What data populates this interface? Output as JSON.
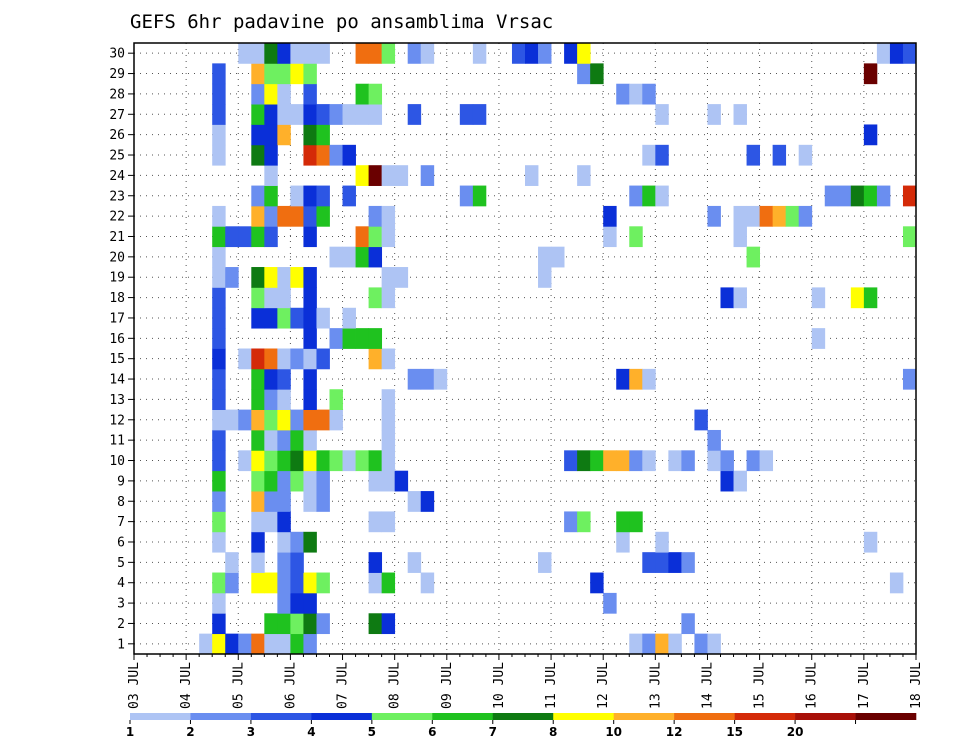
{
  "chart_data": {
    "type": "heatmap",
    "title": "GEFS 6hr padavine po ansamblima Vrsac",
    "xlabel": "",
    "ylabel": "",
    "x_categories": [
      "03 JUL",
      "04 JUL",
      "05 JUL",
      "06 JUL",
      "07 JUL",
      "08 JUL",
      "09 JUL",
      "10 JUL",
      "11 JUL",
      "12 JUL",
      "13 JUL",
      "14 JUL",
      "15 JUL",
      "16 JUL",
      "17 JUL",
      "18 JUL"
    ],
    "y_categories": [
      "1",
      "2",
      "3",
      "4",
      "5",
      "6",
      "7",
      "8",
      "9",
      "10",
      "11",
      "12",
      "13",
      "14",
      "15",
      "16",
      "17",
      "18",
      "19",
      "20",
      "21",
      "22",
      "23",
      "24",
      "25",
      "26",
      "27",
      "28",
      "29",
      "30"
    ],
    "steps_per_day": 4,
    "grid": true,
    "legend_placement": "bottom",
    "color_levels": [
      {
        "color": "#aec4f4",
        "label": "1"
      },
      {
        "color": "#6a8ef0",
        "label": "2"
      },
      {
        "color": "#2d56e4",
        "label": "3"
      },
      {
        "color": "#0a2fd8",
        "label": "4"
      },
      {
        "color": "#6ef060",
        "label": "5"
      },
      {
        "color": "#1fc21f",
        "label": "6"
      },
      {
        "color": "#0e7a12",
        "label": "7"
      },
      {
        "color": "#ffff00",
        "label": "8"
      },
      {
        "color": "#ffb02a",
        "label": "10"
      },
      {
        "color": "#f06e10",
        "label": "12"
      },
      {
        "color": "#d42a08",
        "label": "15"
      },
      {
        "color": "#a81008",
        "label": "20"
      },
      {
        "color": "#6a0000",
        "label": ""
      }
    ],
    "cells": [
      [
        1,
        5,
        0
      ],
      [
        1,
        6,
        7
      ],
      [
        1,
        7,
        3
      ],
      [
        1,
        8,
        1
      ],
      [
        1,
        9,
        9
      ],
      [
        1,
        10,
        0
      ],
      [
        1,
        11,
        0
      ],
      [
        1,
        12,
        5
      ],
      [
        1,
        13,
        1
      ],
      [
        1,
        38,
        0
      ],
      [
        1,
        39,
        1
      ],
      [
        1,
        40,
        8
      ],
      [
        1,
        41,
        0
      ],
      [
        1,
        43,
        1
      ],
      [
        1,
        44,
        0
      ],
      [
        2,
        6,
        3
      ],
      [
        2,
        10,
        5
      ],
      [
        2,
        11,
        5
      ],
      [
        2,
        12,
        4
      ],
      [
        2,
        13,
        6
      ],
      [
        2,
        14,
        1
      ],
      [
        2,
        18,
        6
      ],
      [
        2,
        19,
        3
      ],
      [
        2,
        42,
        1
      ],
      [
        3,
        6,
        0
      ],
      [
        3,
        11,
        1
      ],
      [
        3,
        12,
        3
      ],
      [
        3,
        13,
        3
      ],
      [
        3,
        36,
        1
      ],
      [
        4,
        6,
        4
      ],
      [
        4,
        7,
        1
      ],
      [
        4,
        9,
        7
      ],
      [
        4,
        10,
        7
      ],
      [
        4,
        11,
        1
      ],
      [
        4,
        12,
        2
      ],
      [
        4,
        13,
        7
      ],
      [
        4,
        14,
        4
      ],
      [
        4,
        18,
        0
      ],
      [
        4,
        19,
        5
      ],
      [
        4,
        22,
        0
      ],
      [
        4,
        35,
        3
      ],
      [
        4,
        58,
        0
      ],
      [
        5,
        7,
        0
      ],
      [
        5,
        9,
        0
      ],
      [
        5,
        11,
        1
      ],
      [
        5,
        12,
        2
      ],
      [
        5,
        18,
        3
      ],
      [
        5,
        21,
        0
      ],
      [
        5,
        31,
        0
      ],
      [
        5,
        39,
        2
      ],
      [
        5,
        40,
        2
      ],
      [
        5,
        41,
        3
      ],
      [
        5,
        42,
        1
      ],
      [
        6,
        6,
        0
      ],
      [
        6,
        9,
        3
      ],
      [
        6,
        11,
        0
      ],
      [
        6,
        12,
        1
      ],
      [
        6,
        13,
        6
      ],
      [
        6,
        37,
        0
      ],
      [
        6,
        40,
        0
      ],
      [
        6,
        56,
        0
      ],
      [
        7,
        6,
        4
      ],
      [
        7,
        9,
        0
      ],
      [
        7,
        10,
        0
      ],
      [
        7,
        11,
        3
      ],
      [
        7,
        18,
        0
      ],
      [
        7,
        19,
        0
      ],
      [
        7,
        33,
        1
      ],
      [
        7,
        34,
        4
      ],
      [
        7,
        37,
        5
      ],
      [
        7,
        38,
        5
      ],
      [
        8,
        6,
        1
      ],
      [
        8,
        9,
        8
      ],
      [
        8,
        10,
        1
      ],
      [
        8,
        11,
        1
      ],
      [
        8,
        13,
        0
      ],
      [
        8,
        14,
        1
      ],
      [
        8,
        21,
        0
      ],
      [
        8,
        22,
        3
      ],
      [
        9,
        6,
        5
      ],
      [
        9,
        9,
        4
      ],
      [
        9,
        10,
        5
      ],
      [
        9,
        11,
        1
      ],
      [
        9,
        12,
        4
      ],
      [
        9,
        13,
        0
      ],
      [
        9,
        14,
        1
      ],
      [
        9,
        18,
        0
      ],
      [
        9,
        19,
        0
      ],
      [
        9,
        20,
        3
      ],
      [
        9,
        45,
        3
      ],
      [
        9,
        46,
        0
      ],
      [
        10,
        6,
        2
      ],
      [
        10,
        8,
        0
      ],
      [
        10,
        9,
        7
      ],
      [
        10,
        10,
        4
      ],
      [
        10,
        11,
        5
      ],
      [
        10,
        12,
        6
      ],
      [
        10,
        13,
        7
      ],
      [
        10,
        14,
        5
      ],
      [
        10,
        15,
        4
      ],
      [
        10,
        16,
        0
      ],
      [
        10,
        17,
        4
      ],
      [
        10,
        18,
        5
      ],
      [
        10,
        19,
        0
      ],
      [
        10,
        33,
        2
      ],
      [
        10,
        34,
        6
      ],
      [
        10,
        35,
        5
      ],
      [
        10,
        36,
        8
      ],
      [
        10,
        37,
        8
      ],
      [
        10,
        38,
        1
      ],
      [
        10,
        39,
        0
      ],
      [
        10,
        41,
        0
      ],
      [
        10,
        42,
        1
      ],
      [
        10,
        44,
        0
      ],
      [
        10,
        45,
        1
      ],
      [
        10,
        47,
        1
      ],
      [
        10,
        48,
        0
      ],
      [
        11,
        6,
        2
      ],
      [
        11,
        9,
        5
      ],
      [
        11,
        10,
        0
      ],
      [
        11,
        11,
        1
      ],
      [
        11,
        12,
        5
      ],
      [
        11,
        13,
        0
      ],
      [
        11,
        19,
        0
      ],
      [
        11,
        44,
        1
      ],
      [
        12,
        6,
        0
      ],
      [
        12,
        7,
        0
      ],
      [
        12,
        8,
        1
      ],
      [
        12,
        9,
        8
      ],
      [
        12,
        10,
        4
      ],
      [
        12,
        11,
        7
      ],
      [
        12,
        12,
        1
      ],
      [
        12,
        13,
        9
      ],
      [
        12,
        14,
        9
      ],
      [
        12,
        15,
        0
      ],
      [
        12,
        19,
        0
      ],
      [
        12,
        43,
        2
      ],
      [
        13,
        6,
        2
      ],
      [
        13,
        9,
        5
      ],
      [
        13,
        10,
        1
      ],
      [
        13,
        11,
        0
      ],
      [
        13,
        13,
        3
      ],
      [
        13,
        15,
        4
      ],
      [
        13,
        19,
        0
      ],
      [
        14,
        6,
        2
      ],
      [
        14,
        9,
        5
      ],
      [
        14,
        10,
        3
      ],
      [
        14,
        11,
        2
      ],
      [
        14,
        13,
        3
      ],
      [
        14,
        21,
        1
      ],
      [
        14,
        22,
        1
      ],
      [
        14,
        23,
        0
      ],
      [
        14,
        37,
        3
      ],
      [
        14,
        38,
        8
      ],
      [
        14,
        39,
        0
      ],
      [
        14,
        59,
        1
      ],
      [
        15,
        6,
        3
      ],
      [
        15,
        8,
        0
      ],
      [
        15,
        9,
        10
      ],
      [
        15,
        10,
        9
      ],
      [
        15,
        11,
        0
      ],
      [
        15,
        12,
        1
      ],
      [
        15,
        13,
        0
      ],
      [
        15,
        14,
        2
      ],
      [
        15,
        18,
        8
      ],
      [
        15,
        19,
        0
      ],
      [
        16,
        6,
        2
      ],
      [
        16,
        13,
        3
      ],
      [
        16,
        15,
        1
      ],
      [
        16,
        16,
        5
      ],
      [
        16,
        17,
        5
      ],
      [
        16,
        18,
        5
      ],
      [
        16,
        52,
        0
      ],
      [
        17,
        6,
        2
      ],
      [
        17,
        9,
        3
      ],
      [
        17,
        10,
        3
      ],
      [
        17,
        11,
        4
      ],
      [
        17,
        12,
        2
      ],
      [
        17,
        13,
        3
      ],
      [
        17,
        14,
        0
      ],
      [
        17,
        16,
        0
      ],
      [
        18,
        6,
        2
      ],
      [
        18,
        9,
        4
      ],
      [
        18,
        10,
        0
      ],
      [
        18,
        11,
        0
      ],
      [
        18,
        13,
        3
      ],
      [
        18,
        18,
        4
      ],
      [
        18,
        19,
        0
      ],
      [
        18,
        45,
        3
      ],
      [
        18,
        46,
        0
      ],
      [
        18,
        52,
        0
      ],
      [
        18,
        55,
        7
      ],
      [
        18,
        56,
        5
      ],
      [
        19,
        6,
        0
      ],
      [
        19,
        7,
        1
      ],
      [
        19,
        9,
        6
      ],
      [
        19,
        10,
        7
      ],
      [
        19,
        11,
        0
      ],
      [
        19,
        12,
        7
      ],
      [
        19,
        13,
        3
      ],
      [
        19,
        19,
        0
      ],
      [
        19,
        20,
        0
      ],
      [
        19,
        31,
        0
      ],
      [
        20,
        6,
        0
      ],
      [
        20,
        15,
        0
      ],
      [
        20,
        16,
        0
      ],
      [
        20,
        17,
        5
      ],
      [
        20,
        18,
        3
      ],
      [
        20,
        31,
        0
      ],
      [
        20,
        32,
        0
      ],
      [
        20,
        47,
        4
      ],
      [
        21,
        6,
        5
      ],
      [
        21,
        7,
        2
      ],
      [
        21,
        8,
        2
      ],
      [
        21,
        9,
        5
      ],
      [
        21,
        10,
        2
      ],
      [
        21,
        13,
        3
      ],
      [
        21,
        17,
        9
      ],
      [
        21,
        18,
        4
      ],
      [
        21,
        19,
        0
      ],
      [
        21,
        36,
        0
      ],
      [
        21,
        38,
        4
      ],
      [
        21,
        46,
        0
      ],
      [
        21,
        59,
        4
      ],
      [
        22,
        6,
        0
      ],
      [
        22,
        9,
        8
      ],
      [
        22,
        10,
        1
      ],
      [
        22,
        11,
        9
      ],
      [
        22,
        12,
        9
      ],
      [
        22,
        13,
        2
      ],
      [
        22,
        14,
        5
      ],
      [
        22,
        18,
        1
      ],
      [
        22,
        19,
        0
      ],
      [
        22,
        36,
        3
      ],
      [
        22,
        44,
        1
      ],
      [
        22,
        46,
        0
      ],
      [
        22,
        47,
        0
      ],
      [
        22,
        48,
        9
      ],
      [
        22,
        49,
        8
      ],
      [
        22,
        50,
        4
      ],
      [
        22,
        51,
        1
      ],
      [
        23,
        9,
        1
      ],
      [
        23,
        10,
        5
      ],
      [
        23,
        12,
        0
      ],
      [
        23,
        13,
        3
      ],
      [
        23,
        14,
        2
      ],
      [
        23,
        16,
        2
      ],
      [
        23,
        25,
        1
      ],
      [
        23,
        26,
        5
      ],
      [
        23,
        38,
        1
      ],
      [
        23,
        39,
        5
      ],
      [
        23,
        40,
        0
      ],
      [
        23,
        53,
        1
      ],
      [
        23,
        54,
        1
      ],
      [
        23,
        55,
        6
      ],
      [
        23,
        56,
        5
      ],
      [
        23,
        57,
        1
      ],
      [
        23,
        59,
        10
      ],
      [
        24,
        10,
        0
      ],
      [
        24,
        17,
        7
      ],
      [
        24,
        18,
        12
      ],
      [
        24,
        19,
        0
      ],
      [
        24,
        20,
        0
      ],
      [
        24,
        22,
        1
      ],
      [
        24,
        30,
        0
      ],
      [
        24,
        34,
        0
      ],
      [
        25,
        6,
        0
      ],
      [
        25,
        9,
        6
      ],
      [
        25,
        10,
        3
      ],
      [
        25,
        13,
        10
      ],
      [
        25,
        14,
        9
      ],
      [
        25,
        15,
        1
      ],
      [
        25,
        16,
        3
      ],
      [
        25,
        39,
        0
      ],
      [
        25,
        40,
        2
      ],
      [
        25,
        47,
        2
      ],
      [
        25,
        49,
        2
      ],
      [
        25,
        51,
        0
      ],
      [
        26,
        6,
        0
      ],
      [
        26,
        9,
        3
      ],
      [
        26,
        10,
        3
      ],
      [
        26,
        11,
        8
      ],
      [
        26,
        13,
        6
      ],
      [
        26,
        14,
        5
      ],
      [
        26,
        56,
        3
      ],
      [
        27,
        6,
        2
      ],
      [
        27,
        9,
        5
      ],
      [
        27,
        10,
        3
      ],
      [
        27,
        11,
        0
      ],
      [
        27,
        12,
        0
      ],
      [
        27,
        13,
        3
      ],
      [
        27,
        14,
        2
      ],
      [
        27,
        15,
        1
      ],
      [
        27,
        16,
        0
      ],
      [
        27,
        17,
        0
      ],
      [
        27,
        18,
        0
      ],
      [
        27,
        21,
        2
      ],
      [
        27,
        25,
        2
      ],
      [
        27,
        26,
        2
      ],
      [
        27,
        40,
        0
      ],
      [
        27,
        44,
        0
      ],
      [
        27,
        46,
        0
      ],
      [
        28,
        6,
        2
      ],
      [
        28,
        9,
        1
      ],
      [
        28,
        10,
        7
      ],
      [
        28,
        11,
        0
      ],
      [
        28,
        13,
        2
      ],
      [
        28,
        17,
        5
      ],
      [
        28,
        18,
        4
      ],
      [
        28,
        37,
        1
      ],
      [
        28,
        38,
        0
      ],
      [
        28,
        39,
        1
      ],
      [
        29,
        6,
        2
      ],
      [
        29,
        9,
        8
      ],
      [
        29,
        10,
        4
      ],
      [
        29,
        11,
        4
      ],
      [
        29,
        12,
        7
      ],
      [
        29,
        13,
        4
      ],
      [
        29,
        34,
        1
      ],
      [
        29,
        35,
        6
      ],
      [
        29,
        56,
        12
      ],
      [
        30,
        8,
        0
      ],
      [
        30,
        9,
        0
      ],
      [
        30,
        10,
        6
      ],
      [
        30,
        11,
        3
      ],
      [
        30,
        12,
        0
      ],
      [
        30,
        13,
        0
      ],
      [
        30,
        14,
        0
      ],
      [
        30,
        17,
        9
      ],
      [
        30,
        18,
        9
      ],
      [
        30,
        19,
        4
      ],
      [
        30,
        21,
        1
      ],
      [
        30,
        22,
        0
      ],
      [
        30,
        26,
        0
      ],
      [
        30,
        29,
        2
      ],
      [
        30,
        30,
        3
      ],
      [
        30,
        31,
        1
      ],
      [
        30,
        33,
        3
      ],
      [
        30,
        34,
        7
      ],
      [
        30,
        57,
        0
      ],
      [
        30,
        58,
        3
      ],
      [
        30,
        59,
        2
      ]
    ]
  }
}
